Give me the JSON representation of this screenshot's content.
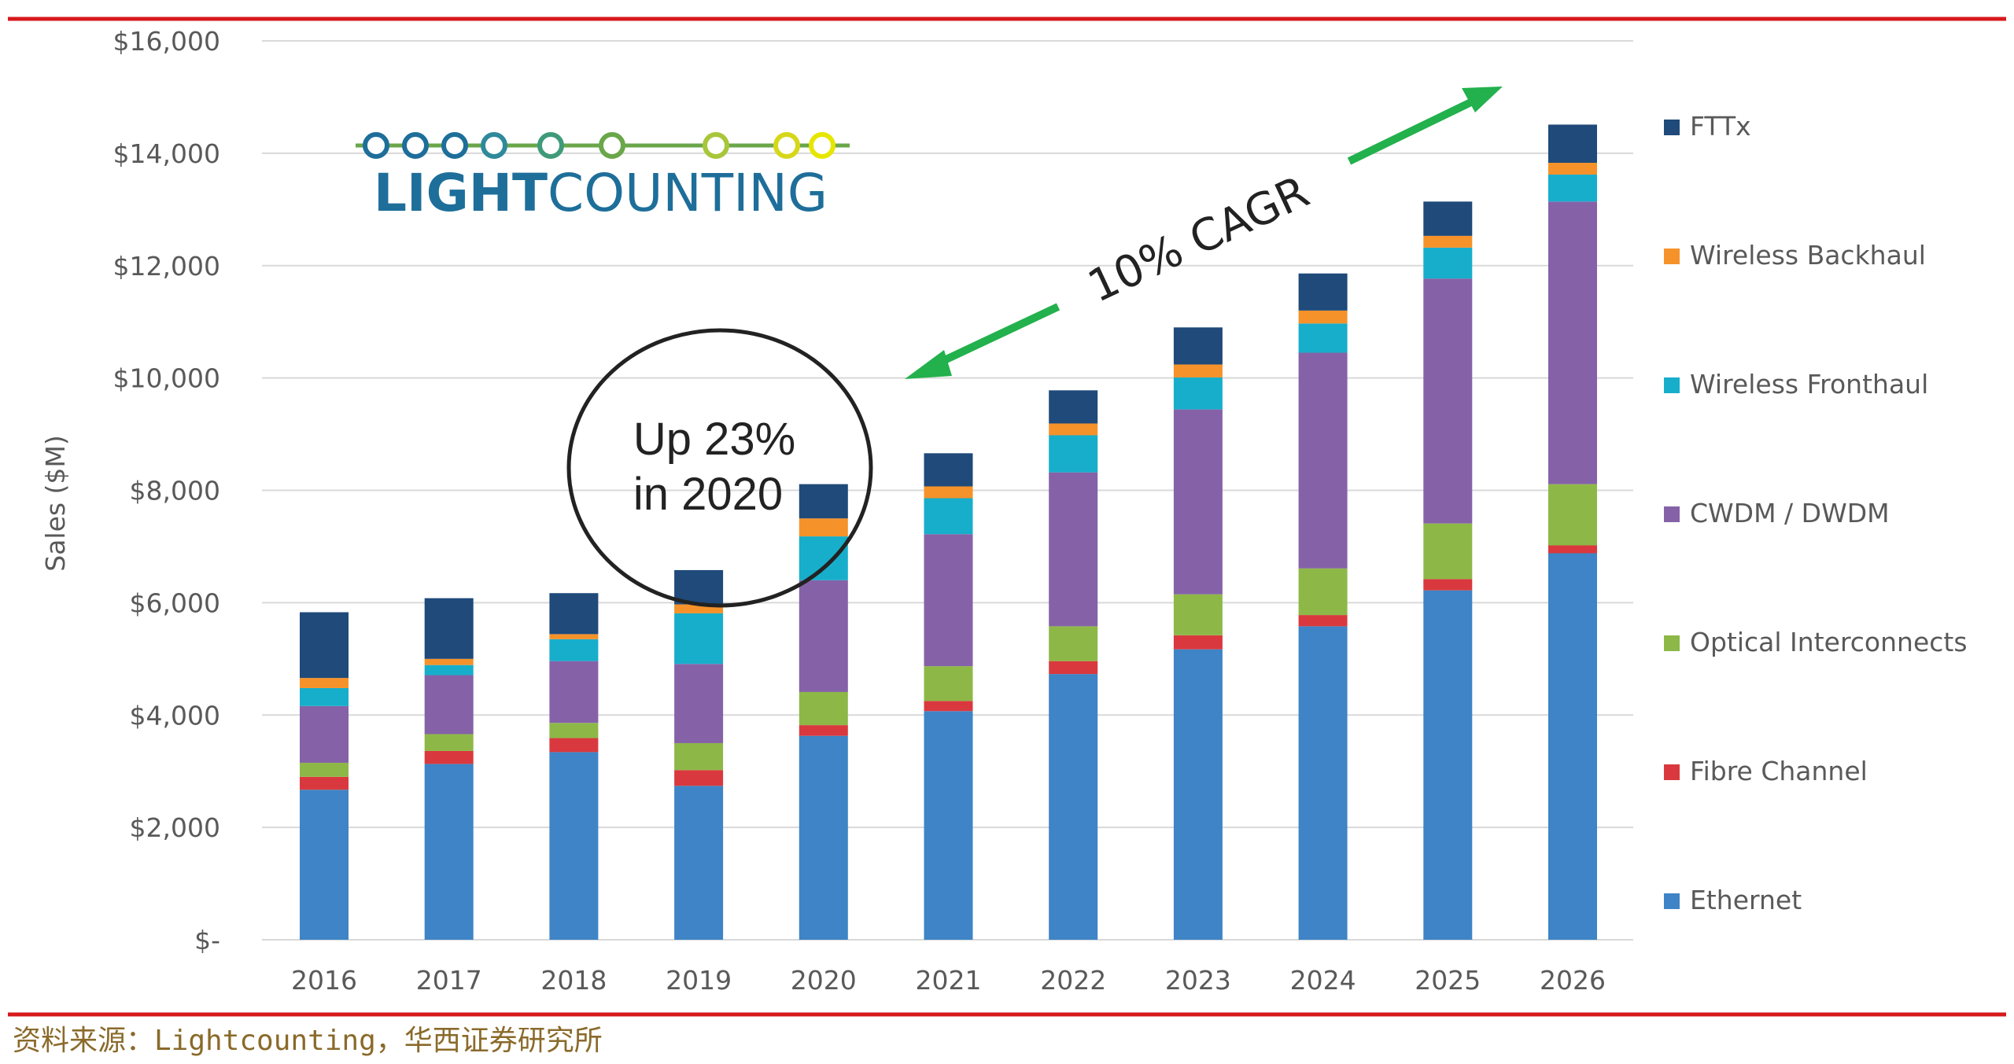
{
  "chart_data": {
    "type": "bar",
    "stacked": true,
    "title": "",
    "xlabel": "",
    "ylabel": "Sales ($M)",
    "ylim": [
      0,
      16000
    ],
    "yticks": [
      "$-",
      "$2,000",
      "$4,000",
      "$6,000",
      "$8,000",
      "$10,000",
      "$12,000",
      "$14,000",
      "$16,000"
    ],
    "grid": true,
    "legend_placement": "right",
    "categories": [
      "2016",
      "2017",
      "2018",
      "2019",
      "2020",
      "2021",
      "2022",
      "2023",
      "2024",
      "2025",
      "2026"
    ],
    "series": [
      {
        "name": "Ethernet",
        "color": "#3E84C6",
        "values": [
          2670,
          3130,
          3340,
          2740,
          3630,
          4070,
          4730,
          5170,
          5580,
          6220,
          6880
        ]
      },
      {
        "name": "Fibre Channel",
        "color": "#D9393E",
        "values": [
          230,
          230,
          250,
          280,
          190,
          180,
          230,
          250,
          200,
          200,
          140
        ]
      },
      {
        "name": "Optical Interconnects",
        "color": "#8DB847",
        "values": [
          250,
          300,
          270,
          480,
          590,
          620,
          620,
          730,
          830,
          990,
          1090
        ]
      },
      {
        "name": "CWDM / DWDM",
        "color": "#8562A8",
        "values": [
          1010,
          1050,
          1100,
          1410,
          1990,
          2350,
          2740,
          3290,
          3840,
          4360,
          5030
        ]
      },
      {
        "name": "Wireless Fronthaul",
        "color": "#17AECB",
        "values": [
          320,
          180,
          390,
          900,
          780,
          640,
          660,
          570,
          520,
          550,
          480
        ]
      },
      {
        "name": "Wireless Backhaul",
        "color": "#F5922A",
        "values": [
          180,
          110,
          90,
          160,
          320,
          210,
          210,
          230,
          230,
          210,
          210
        ]
      },
      {
        "name": "FTTx",
        "color": "#1F4A7A",
        "values": [
          1170,
          1080,
          730,
          610,
          610,
          590,
          590,
          660,
          660,
          610,
          680
        ]
      }
    ],
    "annotations": {
      "cagr": "10% CAGR",
      "circle_line1": "Up 23%",
      "circle_line2": "in 2020",
      "cagr_arrow_color": "#22B14C"
    }
  },
  "logo": {
    "text_bold": "LIGHT",
    "text_regular": "COUNTING"
  },
  "source": "资料来源：Lightcounting，华西证券研究所",
  "colors": {
    "rule": "#D7191C",
    "logo_blue": "#1E6E9A",
    "logo_yellow": "#E6E600"
  }
}
